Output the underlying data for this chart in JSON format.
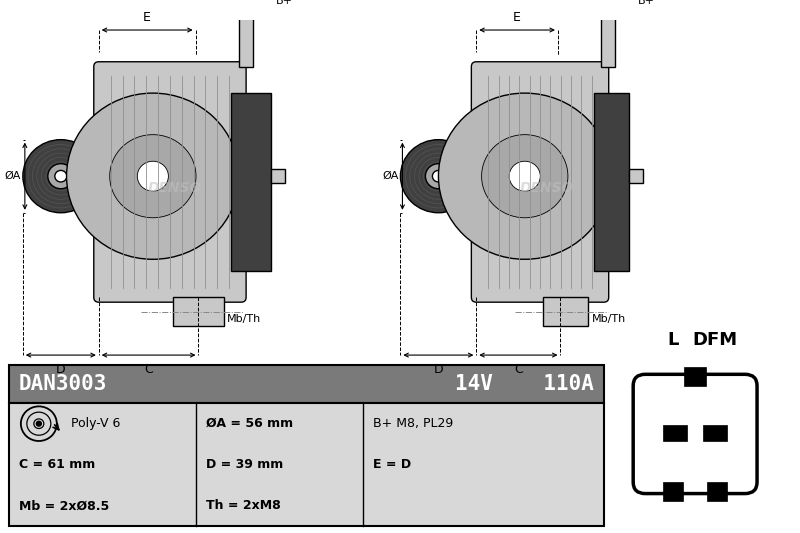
{
  "bg_color": "#ffffff",
  "header_bg": "#7a7a7a",
  "header_text_color": "#ffffff",
  "cell_bg": "#d8d8d8",
  "border_color": "#000000",
  "part_number": "DAN3003",
  "voltage": "14V",
  "amperage": "110A",
  "col1_specs": [
    "Poly-V 6",
    "C = 61 mm",
    "Mb = 2xØ8.5"
  ],
  "col2_specs": [
    "ØA = 56 mm",
    "D = 39 mm",
    "Th = 2xM8"
  ],
  "col3_specs": [
    "B+ M8, PL29",
    "E = D",
    ""
  ],
  "connector_labels": [
    "L",
    "DFM"
  ],
  "diagram_color": "#c8c8c8",
  "med_gray": "#a8a8a8",
  "dark_color": "#404040",
  "line_color": "#000000",
  "denso_color": "#c0c0c0"
}
